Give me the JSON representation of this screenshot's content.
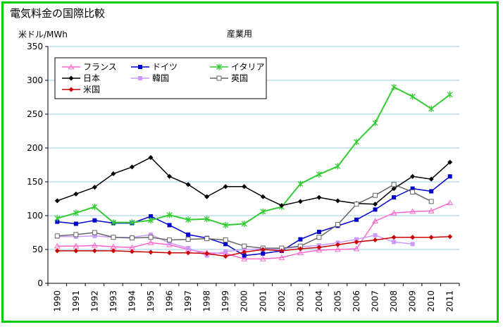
{
  "chart_data": {
    "type": "line",
    "title": "電気料金の国際比較",
    "subtitle": "産業用",
    "ylabel": "米ドル/MWh",
    "xlabel": "",
    "ylim": [
      0,
      350
    ],
    "yticks": [
      0,
      50,
      100,
      150,
      200,
      250,
      300,
      350
    ],
    "grid": true,
    "legend_position": "top-left",
    "x": [
      "1990",
      "1991",
      "1992",
      "1993",
      "1994",
      "1995",
      "1996",
      "1997",
      "1998",
      "1999",
      "2000",
      "2001",
      "2002",
      "2003",
      "2004",
      "2005",
      "2006",
      "2007",
      "2008",
      "2009",
      "2010",
      "2011"
    ],
    "series": [
      {
        "name": "フランス",
        "color": "#ff66cc",
        "marker": "triangle",
        "values": [
          55,
          55,
          56,
          54,
          53,
          60,
          57,
          50,
          45,
          44,
          36,
          36,
          38,
          45,
          49,
          50,
          51,
          92,
          104,
          106,
          107,
          119
        ]
      },
      {
        "name": "ドイツ",
        "color": "#0000cc",
        "marker": "square",
        "values": [
          91,
          88,
          93,
          89,
          89,
          99,
          86,
          72,
          67,
          58,
          41,
          44,
          48,
          65,
          76,
          85,
          94,
          109,
          127,
          140,
          136,
          158
        ]
      },
      {
        "name": "イタリア",
        "color": "#33cc33",
        "marker": "star",
        "values": [
          96,
          104,
          113,
          90,
          90,
          93,
          101,
          94,
          95,
          86,
          88,
          106,
          113,
          147,
          161,
          173,
          209,
          237,
          290,
          276,
          258,
          279
        ]
      },
      {
        "name": "日本",
        "color": "#000000",
        "marker": "diamond",
        "values": [
          122,
          132,
          142,
          162,
          172,
          186,
          158,
          146,
          128,
          143,
          143,
          128,
          115,
          121,
          127,
          122,
          118,
          117,
          140,
          158,
          154,
          179
        ]
      },
      {
        "name": "韓国",
        "color": "#cc99ff",
        "marker": "square",
        "values": [
          69,
          69,
          70,
          68,
          68,
          72,
          60,
          52,
          41,
          47,
          50,
          51,
          51,
          54,
          56,
          60,
          65,
          71,
          61,
          58,
          null,
          null
        ]
      },
      {
        "name": "英国",
        "color": "#666666",
        "marker": "square-open",
        "values": [
          70,
          72,
          75,
          68,
          67,
          68,
          64,
          65,
          66,
          64,
          55,
          52,
          52,
          55,
          68,
          87,
          117,
          130,
          146,
          135,
          121,
          null
        ]
      },
      {
        "name": "米国",
        "color": "#cc0000",
        "marker": "diamond",
        "values": [
          48,
          48,
          48,
          48,
          47,
          46,
          45,
          45,
          44,
          40,
          46,
          50,
          48,
          51,
          53,
          57,
          61,
          64,
          68,
          68,
          68,
          69
        ]
      }
    ]
  }
}
